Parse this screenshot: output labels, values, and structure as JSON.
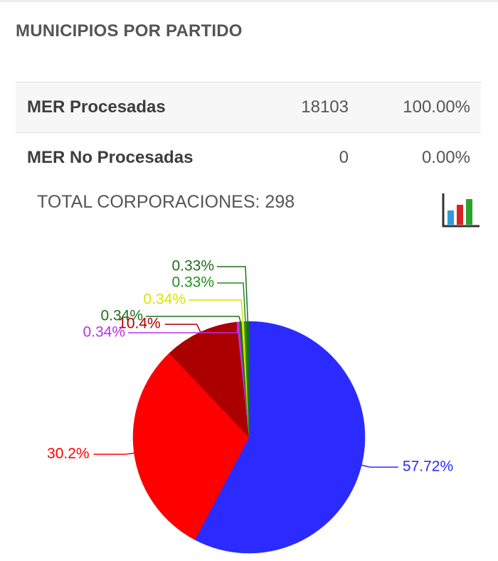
{
  "panel": {
    "title": "MUNICIPIOS POR PARTIDO"
  },
  "stats": {
    "rows": [
      {
        "label": "MER Procesadas",
        "count": "18103",
        "percent": "100.00%"
      },
      {
        "label": "MER No Procesadas",
        "count": "0",
        "percent": "0.00%"
      }
    ]
  },
  "total": {
    "label": "TOTAL CORPORACIONES: 298"
  },
  "icons": {
    "chart_toggle": "bar-chart-icon"
  },
  "chart_data": {
    "type": "pie",
    "values": [
      57.72,
      30.2,
      10.4,
      0.34,
      0.34,
      0.34,
      0.33,
      0.33
    ],
    "labels": [
      "57.72%",
      "30.2%",
      "10.4%",
      "0.34%",
      "0.34%",
      "0.34%",
      "0.33%",
      "0.33%"
    ],
    "colors": [
      "#2b2bff",
      "#ff0000",
      "#aa0000",
      "#b833e6",
      "#1f6e1f",
      "#e0e000",
      "#1f8f1f",
      "#1f6e1f"
    ],
    "start_angle_deg": 0,
    "direction": "clockwise",
    "legend": "none"
  }
}
